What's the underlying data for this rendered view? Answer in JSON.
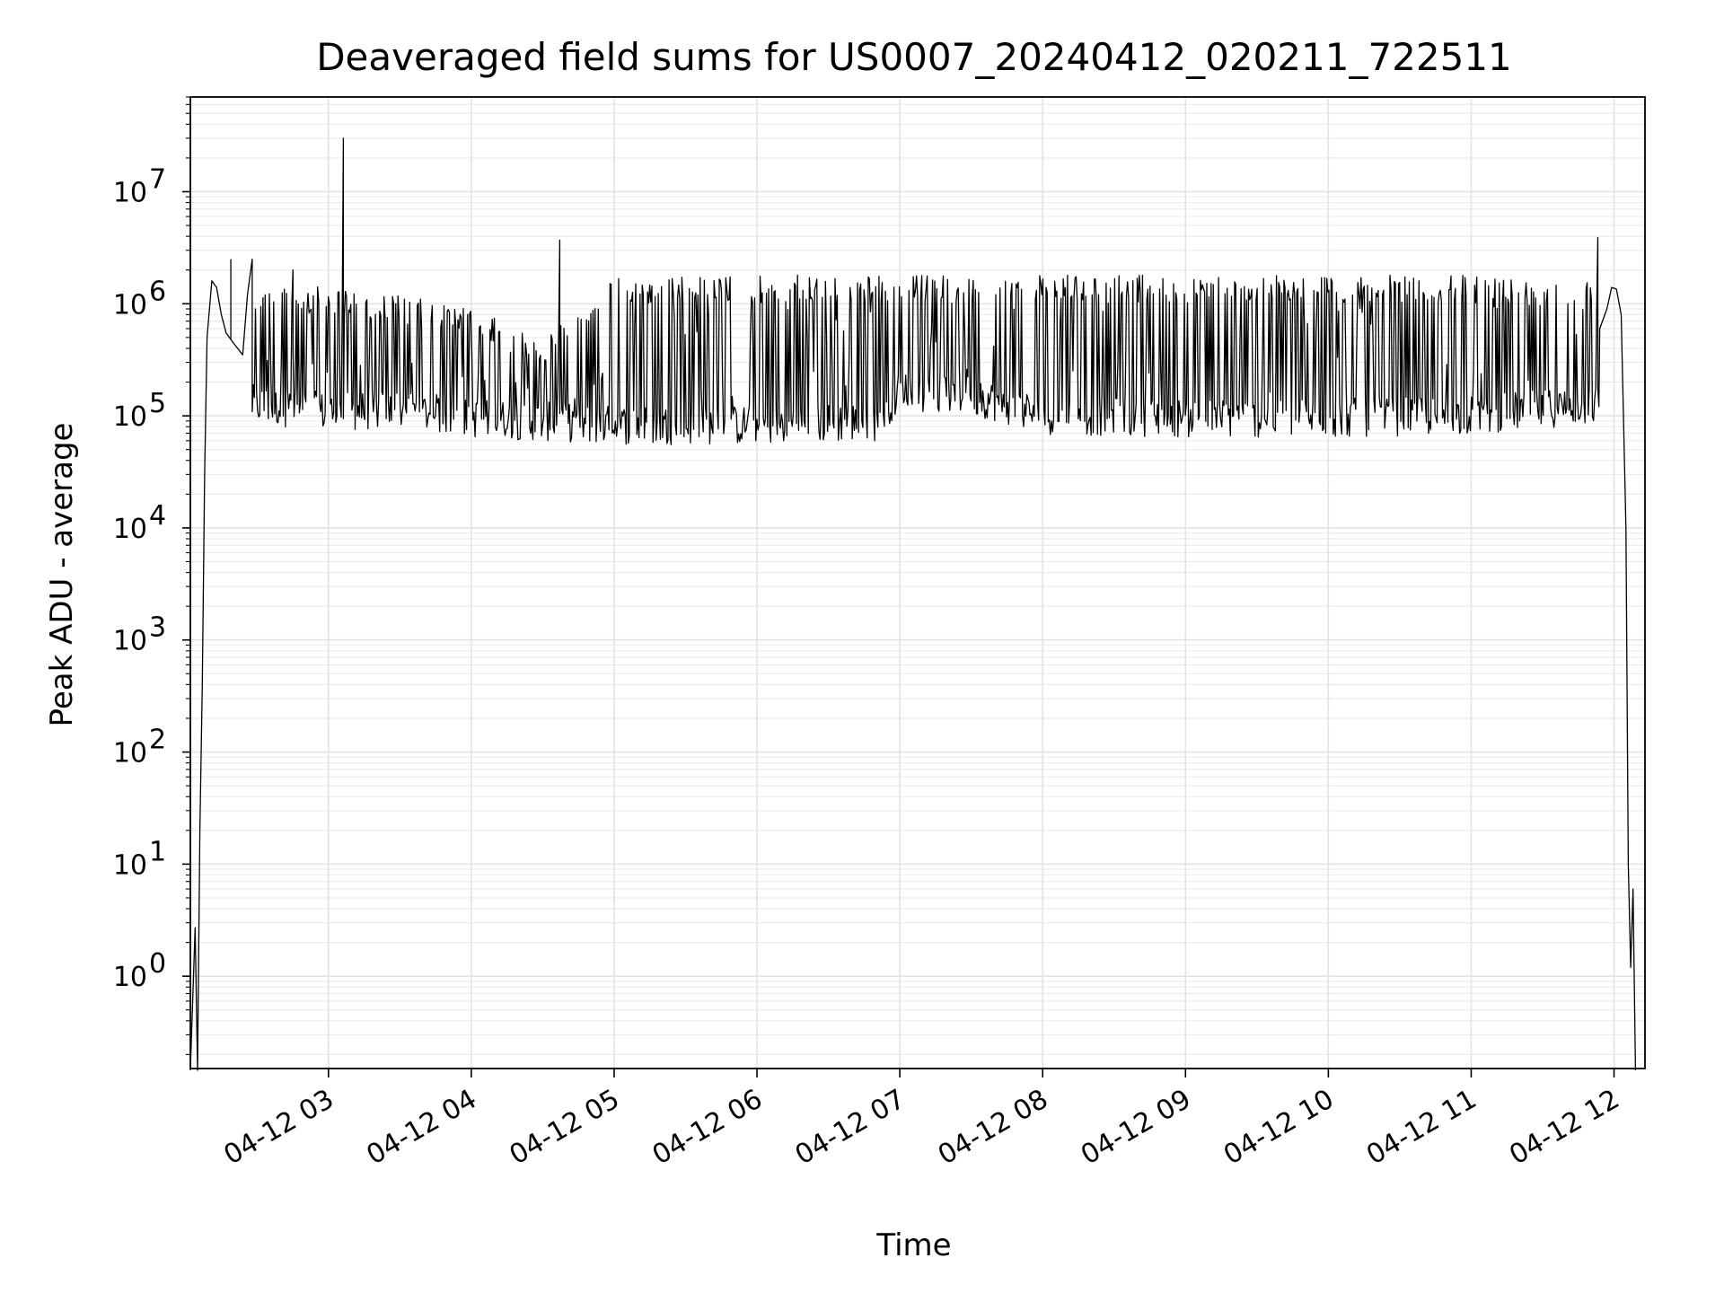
{
  "chart_data": {
    "type": "line",
    "title": "Deaveraged field sums for US0007_20240412_020211_722511",
    "xlabel": "Time",
    "ylabel": "Peak ADU - average",
    "yscale": "log",
    "ylim": [
      0.15,
      70000000
    ],
    "xlim": [
      "2024-04-12 02:02",
      "2024-04-12 12:13"
    ],
    "grid": true,
    "legend": "none",
    "line_color": "#000000",
    "x_ticks": [
      {
        "value": "2024-04-12 03:00",
        "label": "04-12 03"
      },
      {
        "value": "2024-04-12 04:00",
        "label": "04-12 04"
      },
      {
        "value": "2024-04-12 05:00",
        "label": "04-12 05"
      },
      {
        "value": "2024-04-12 06:00",
        "label": "04-12 06"
      },
      {
        "value": "2024-04-12 07:00",
        "label": "04-12 07"
      },
      {
        "value": "2024-04-12 08:00",
        "label": "04-12 08"
      },
      {
        "value": "2024-04-12 09:00",
        "label": "04-12 09"
      },
      {
        "value": "2024-04-12 10:00",
        "label": "04-12 10"
      },
      {
        "value": "2024-04-12 11:00",
        "label": "04-12 11"
      },
      {
        "value": "2024-04-12 12:00",
        "label": "04-12 12"
      }
    ],
    "y_ticks": [
      {
        "value": 1,
        "base": "10",
        "exp": "0"
      },
      {
        "value": 10,
        "base": "10",
        "exp": "1"
      },
      {
        "value": 100,
        "base": "10",
        "exp": "2"
      },
      {
        "value": 1000,
        "base": "10",
        "exp": "3"
      },
      {
        "value": 10000,
        "base": "10",
        "exp": "4"
      },
      {
        "value": 100000,
        "base": "10",
        "exp": "5"
      },
      {
        "value": 1000000,
        "base": "10",
        "exp": "6"
      },
      {
        "value": 10000000,
        "base": "10",
        "exp": "7"
      }
    ],
    "series": [
      {
        "envelope": [
          {
            "x": "2024-04-12 02:02",
            "y": 0.1
          },
          {
            "x": "2024-04-12 02:04",
            "y": 2.7
          },
          {
            "x": "2024-04-12 02:05",
            "y": 0.1
          },
          {
            "x": "2024-04-12 02:06",
            "y": 20
          },
          {
            "x": "2024-04-12 02:07",
            "y": 400
          },
          {
            "x": "2024-04-12 02:08",
            "y": 30000
          },
          {
            "x": "2024-04-12 02:09",
            "y": 500000
          },
          {
            "x": "2024-04-12 02:11",
            "y": 1600000
          },
          {
            "x": "2024-04-12 02:13",
            "y": 1400000
          },
          {
            "x": "2024-04-12 02:15",
            "y": 800000
          },
          {
            "x": "2024-04-12 02:17",
            "y": 550000
          },
          {
            "x": "2024-04-12 02:20",
            "y": 450000
          },
          {
            "x": "2024-04-12 02:24",
            "y": 350000
          },
          {
            "x": "2024-04-12 02:26",
            "y": 1200000
          }
        ],
        "band": {
          "x_start": "2024-04-12 02:28",
          "x_end": "2024-04-12 11:54",
          "upper": [
            {
              "x": "2024-04-12 02:28",
              "y": 1500000
            },
            {
              "x": "2024-04-12 03:00",
              "y": 1400000
            },
            {
              "x": "2024-04-12 03:30",
              "y": 1200000
            },
            {
              "x": "2024-04-12 04:00",
              "y": 900000
            },
            {
              "x": "2024-04-12 04:30",
              "y": 500000
            },
            {
              "x": "2024-04-12 05:00",
              "y": 1700000
            },
            {
              "x": "2024-04-12 06:00",
              "y": 1800000
            },
            {
              "x": "2024-04-12 07:00",
              "y": 1800000
            },
            {
              "x": "2024-04-12 08:00",
              "y": 1800000
            },
            {
              "x": "2024-04-12 09:00",
              "y": 1800000
            },
            {
              "x": "2024-04-12 10:00",
              "y": 1800000
            },
            {
              "x": "2024-04-12 11:00",
              "y": 1800000
            },
            {
              "x": "2024-04-12 11:54",
              "y": 1600000
            }
          ],
          "lower": [
            {
              "x": "2024-04-12 02:28",
              "y": 100000
            },
            {
              "x": "2024-04-12 03:00",
              "y": 85000
            },
            {
              "x": "2024-04-12 03:30",
              "y": 90000
            },
            {
              "x": "2024-04-12 04:00",
              "y": 75000
            },
            {
              "x": "2024-04-12 04:30",
              "y": 70000
            },
            {
              "x": "2024-04-12 05:00",
              "y": 65000
            },
            {
              "x": "2024-04-12 06:00",
              "y": 65000
            },
            {
              "x": "2024-04-12 06:50",
              "y": 70000
            },
            {
              "x": "2024-04-12 07:00",
              "y": 130000
            },
            {
              "x": "2024-04-12 07:30",
              "y": 120000
            },
            {
              "x": "2024-04-12 08:00",
              "y": 80000
            },
            {
              "x": "2024-04-12 09:00",
              "y": 75000
            },
            {
              "x": "2024-04-12 10:00",
              "y": 75000
            },
            {
              "x": "2024-04-12 11:00",
              "y": 80000
            },
            {
              "x": "2024-04-12 11:54",
              "y": 100000
            }
          ]
        },
        "tail": [
          {
            "x": "2024-04-12 11:54",
            "y": 600000
          },
          {
            "x": "2024-04-12 11:57",
            "y": 900000
          },
          {
            "x": "2024-04-12 11:59",
            "y": 1400000
          },
          {
            "x": "2024-04-12 12:01",
            "y": 1350000
          },
          {
            "x": "2024-04-12 12:03",
            "y": 800000
          },
          {
            "x": "2024-04-12 12:05",
            "y": 10000
          },
          {
            "x": "2024-04-12 12:06",
            "y": 10
          },
          {
            "x": "2024-04-12 12:07",
            "y": 1.2
          },
          {
            "x": "2024-04-12 12:08",
            "y": 6
          },
          {
            "x": "2024-04-12 12:09",
            "y": 0.1
          }
        ],
        "spikes": [
          {
            "x": "2024-04-12 02:19",
            "y": 2500000
          },
          {
            "x": "2024-04-12 02:45",
            "y": 2000000
          },
          {
            "x": "2024-04-12 03:06",
            "y": 30000000
          },
          {
            "x": "2024-04-12 04:37",
            "y": 3700000
          },
          {
            "x": "2024-04-12 11:53",
            "y": 3900000
          }
        ],
        "dips": [
          {
            "x": "2024-04-12 11:55",
            "y": 180000
          }
        ]
      }
    ]
  }
}
